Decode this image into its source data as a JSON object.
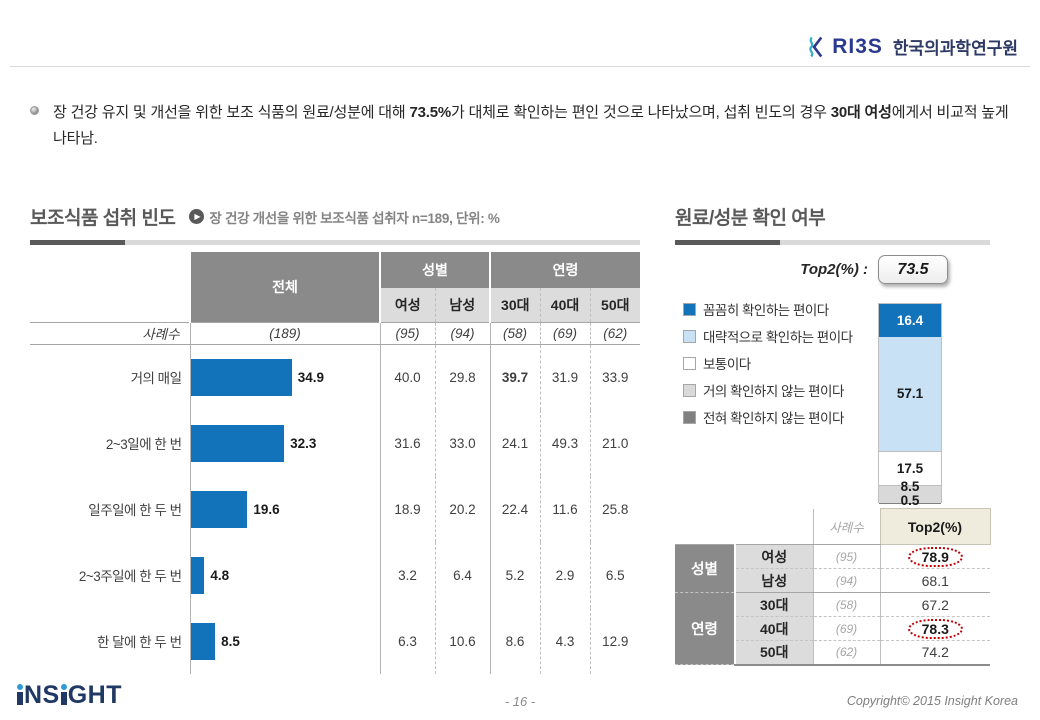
{
  "header": {
    "brand": "RI3S",
    "org": "한국의과학연구원"
  },
  "bullet": {
    "s1": "장 건강 유지 및 개선을 위한 보조 식품의 원료/성분에 대해 ",
    "b1": "73.5%",
    "s2": "가 대체로 확인하는 편인 것으로 나타났으며, 섭취 빈도의 경우 ",
    "b2": "30대 여성",
    "s3": "에게서 비교적 높게 나타남."
  },
  "left": {
    "title": "보조식품 섭취 빈도",
    "subtitle": "장 건강 개선을 위한 보조식품 섭취자 n=189, 단위: %",
    "table": {
      "col_total": "전체",
      "col_gender": "성별",
      "col_age": "연령",
      "sub_cols": [
        "여성",
        "남성",
        "30대",
        "40대",
        "50대"
      ],
      "base_label": "사례수",
      "base_values": [
        "(189)",
        "(95)",
        "(94)",
        "(58)",
        "(69)",
        "(62)"
      ],
      "rows": [
        {
          "label": "거의 매일",
          "total": "34.9",
          "vals": [
            "40.0",
            "29.8",
            "39.7",
            "31.9",
            "33.9"
          ]
        },
        {
          "label": "2~3일에 한 번",
          "total": "32.3",
          "vals": [
            "31.6",
            "33.0",
            "24.1",
            "49.3",
            "21.0"
          ]
        },
        {
          "label": "일주일에 한 두 번",
          "total": "19.6",
          "vals": [
            "18.9",
            "20.2",
            "22.4",
            "11.6",
            "25.8"
          ]
        },
        {
          "label": "2~3주일에 한 두 번",
          "total": "4.8",
          "vals": [
            "3.2",
            "6.4",
            "5.2",
            "2.9",
            "6.5"
          ]
        },
        {
          "label": "한 달에 한 두 번",
          "total": "8.5",
          "vals": [
            "6.3",
            "10.6",
            "8.6",
            "4.3",
            "12.9"
          ]
        }
      ]
    }
  },
  "right": {
    "title": "원료/성분 확인 여부",
    "top2_label": "Top2(%) :",
    "top2_value": "73.5",
    "legend": [
      {
        "label": "꼼꼼히 확인하는 편이다",
        "color": "#1273ba"
      },
      {
        "label": "대략적으로 확인하는 편이다",
        "color": "#c9e1f5"
      },
      {
        "label": "보통이다",
        "color": "#ffffff"
      },
      {
        "label": "거의 확인하지 않는 편이다",
        "color": "#d9d9d9"
      },
      {
        "label": "전혀 확인하지 않는 편이다",
        "color": "#808080"
      }
    ],
    "table": {
      "case_header": "사례수",
      "top2_header": "Top2(%)",
      "group_gender": "성별",
      "group_age": "연령",
      "rows": [
        {
          "cat": "여성",
          "base": "(95)",
          "top2": "78.9",
          "circled": true
        },
        {
          "cat": "남성",
          "base": "(94)",
          "top2": "68.1",
          "circled": false
        },
        {
          "cat": "30대",
          "base": "(58)",
          "top2": "67.2",
          "circled": false
        },
        {
          "cat": "40대",
          "base": "(69)",
          "top2": "78.3",
          "circled": true
        },
        {
          "cat": "50대",
          "base": "(62)",
          "top2": "74.2",
          "circled": false
        }
      ]
    }
  },
  "footer": {
    "logo_p1": "NS",
    "logo_p2": "GHT",
    "page": "- 16 -",
    "copyright": "Copyright© 2015 Insight Korea"
  },
  "chart_data": [
    {
      "type": "bar",
      "orientation": "horizontal",
      "title": "보조식품 섭취 빈도",
      "subtitle": "장 건강 개선을 위한 보조식품 섭취자 n=189, 단위: %",
      "unit": "%",
      "categories": [
        "거의 매일",
        "2~3일에 한 번",
        "일주일에 한 두 번",
        "2~3주일에 한 두 번",
        "한 달에 한 두 번"
      ],
      "values": [
        34.9,
        32.3,
        19.6,
        4.8,
        8.5
      ],
      "bar_color": "#1273ba",
      "series": [
        {
          "name": "전체",
          "base": 189,
          "values": [
            34.9,
            32.3,
            19.6,
            4.8,
            8.5
          ]
        },
        {
          "name": "여성",
          "base": 95,
          "values": [
            40.0,
            31.6,
            18.9,
            3.2,
            6.3
          ]
        },
        {
          "name": "남성",
          "base": 94,
          "values": [
            29.8,
            33.0,
            20.2,
            6.4,
            10.6
          ]
        },
        {
          "name": "30대",
          "base": 58,
          "values": [
            39.7,
            24.1,
            22.4,
            5.2,
            8.6
          ]
        },
        {
          "name": "40대",
          "base": 69,
          "values": [
            31.9,
            49.3,
            11.6,
            2.9,
            4.3
          ]
        },
        {
          "name": "50대",
          "base": 62,
          "values": [
            33.9,
            21.0,
            25.8,
            6.5,
            12.9
          ]
        }
      ]
    },
    {
      "type": "stacked-bar",
      "title": "원료/성분 확인 여부",
      "top2": 73.5,
      "categories": [
        "꼼꼼히 확인하는 편이다",
        "대략적으로 확인하는 편이다",
        "보통이다",
        "거의 확인하지 않는 편이다",
        "전혀 확인하지 않는 편이다"
      ],
      "values": [
        16.4,
        57.1,
        17.5,
        8.5,
        0.5
      ],
      "segment_colors": [
        "#1273ba",
        "#c9e1f5",
        "#ffffff",
        "#d9d9d9",
        "#808080"
      ],
      "breakdown": {
        "columns": [
          "사례수",
          "Top2(%)"
        ],
        "rows": [
          [
            "여성",
            "(95)",
            78.9
          ],
          [
            "남성",
            "(94)",
            68.1
          ],
          [
            "30대",
            "(58)",
            67.2
          ],
          [
            "40대",
            "(69)",
            78.3
          ],
          [
            "50대",
            "(62)",
            74.2
          ]
        ],
        "highlighted": [
          "여성",
          "40대"
        ]
      }
    }
  ]
}
